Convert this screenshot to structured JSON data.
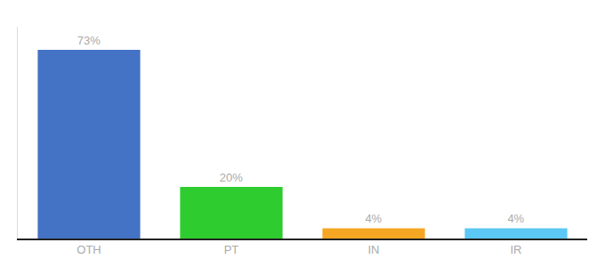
{
  "chart_data": {
    "type": "bar",
    "categories": [
      "OTH",
      "PT",
      "IN",
      "IR"
    ],
    "values": [
      73,
      20,
      4,
      4
    ],
    "value_labels": [
      "73%",
      "20%",
      "4%",
      "4%"
    ],
    "data_labels": true,
    "colors": [
      "#4472c4",
      "#2ecc2e",
      "#f5a623",
      "#5bc8f5"
    ],
    "ylim": [
      0,
      82
    ],
    "yticks": [],
    "tick_labels": "x",
    "grid": false
  }
}
